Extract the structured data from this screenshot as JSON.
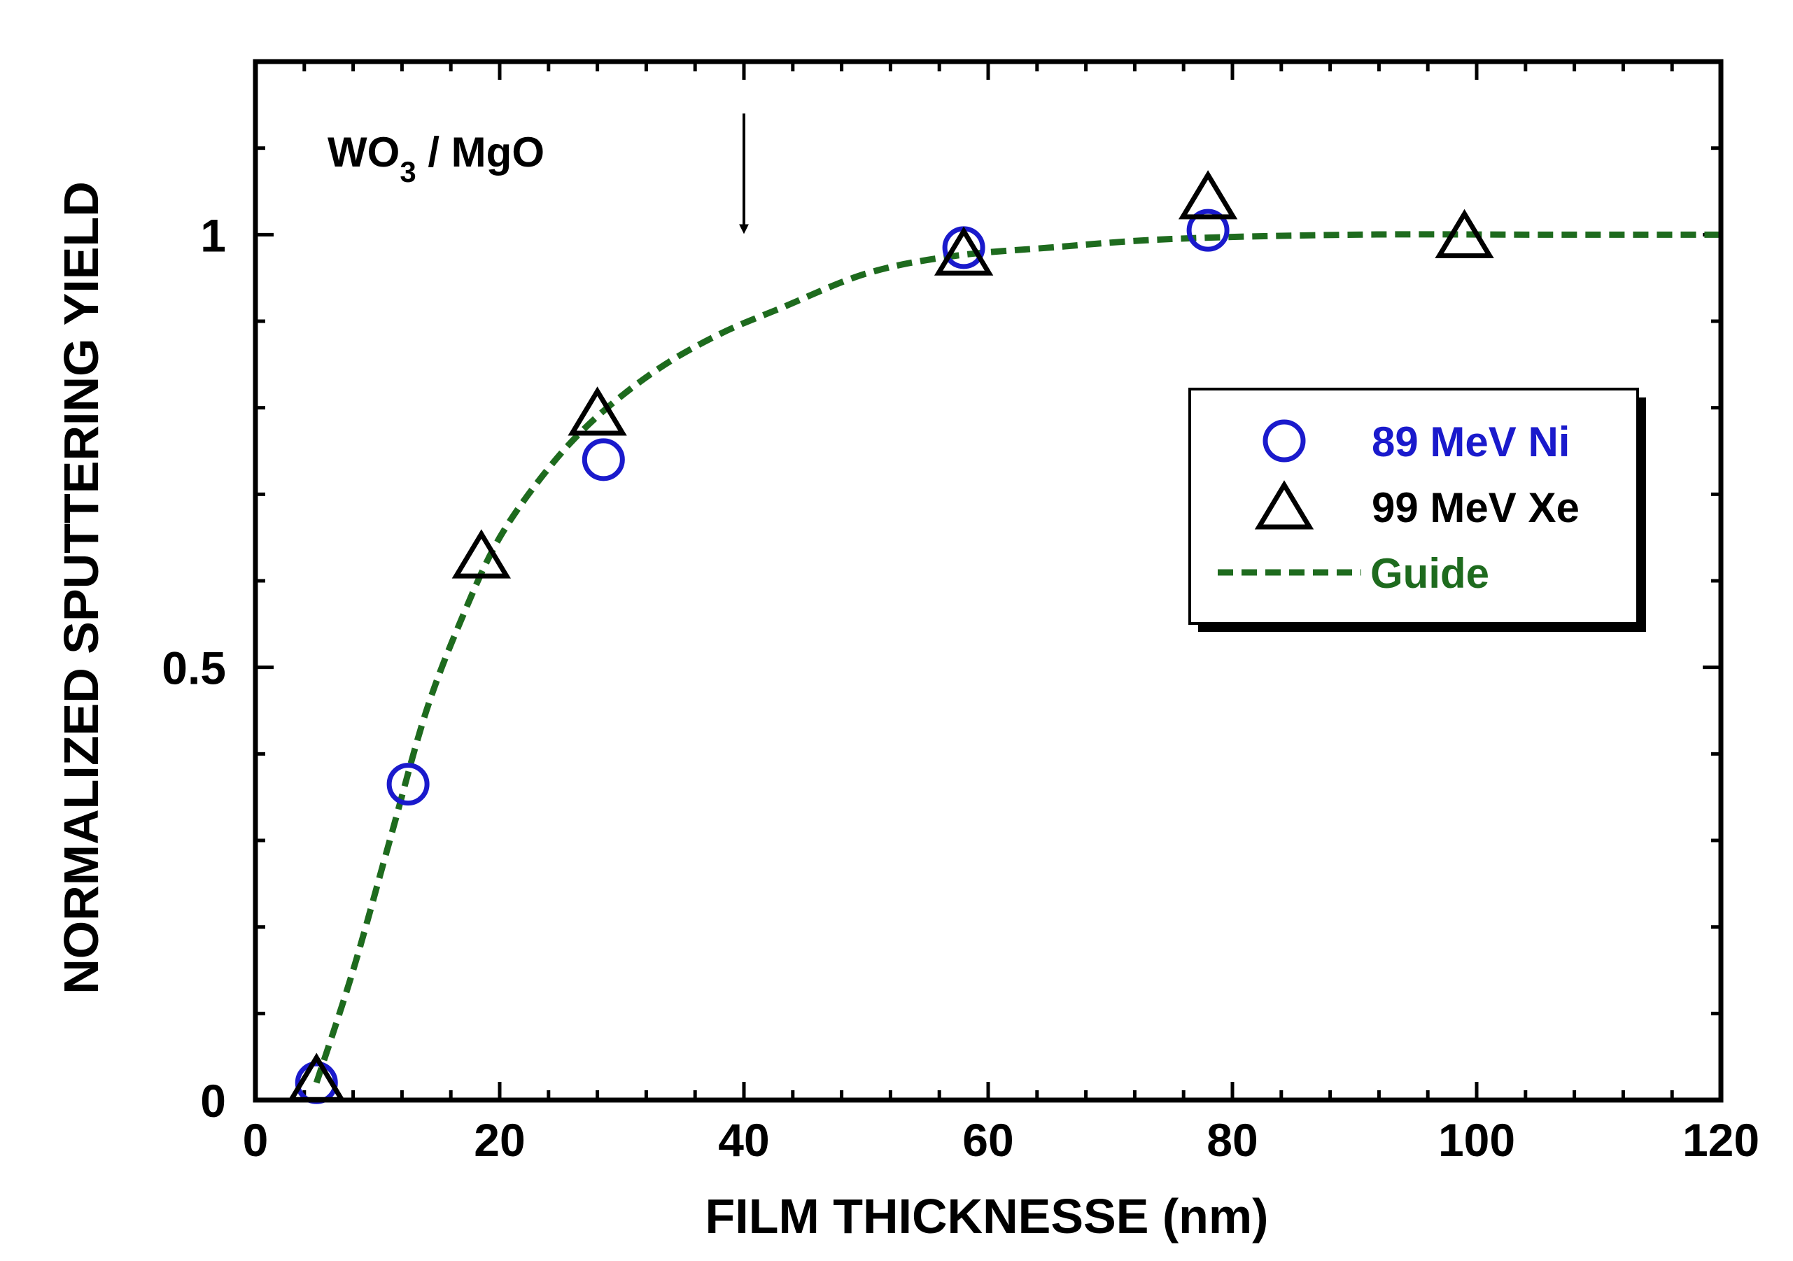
{
  "chart_data": {
    "type": "scatter",
    "title": "",
    "xlabel": "FILM  THICKNESSE  (nm)",
    "ylabel": "NORMALIZED  SPUTTERING  YIELD",
    "xlim": [
      0,
      120
    ],
    "ylim": [
      0,
      1.2
    ],
    "x_ticks": [
      0,
      20,
      40,
      60,
      80,
      100,
      120
    ],
    "x_tick_labels": [
      "0",
      "20",
      "40",
      "60",
      "80",
      "100",
      "120"
    ],
    "y_ticks": [
      0,
      0.5,
      1
    ],
    "y_tick_labels": [
      "0",
      "0.5",
      "1"
    ],
    "grid": false,
    "legend_position": "right",
    "annotation": {
      "text_main": "WO",
      "text_sub": "3",
      "text_rest": " / MgO",
      "arrow_x": 40,
      "arrow_from_y": 1.14,
      "arrow_to_y": 1.0
    },
    "series": [
      {
        "name": "89 MeV Ni",
        "marker": "circle",
        "color": "#1a1acc",
        "x": [
          5,
          12.5,
          28.5,
          58,
          78
        ],
        "y": [
          0.02,
          0.365,
          0.74,
          0.985,
          1.005
        ]
      },
      {
        "name": "99 MeV Xe",
        "marker": "triangle",
        "color": "#000000",
        "x": [
          5,
          18.5,
          28,
          58,
          78,
          99
        ],
        "y": [
          0.02,
          0.625,
          0.79,
          0.975,
          1.04,
          0.995
        ]
      },
      {
        "name": "Guide",
        "marker": "dashed-line",
        "color": "#1e6b1e",
        "x": [
          5,
          8,
          11,
          14,
          17,
          20,
          24,
          28,
          33,
          38,
          43,
          50,
          57,
          65,
          75,
          90,
          105,
          120
        ],
        "y": [
          0.02,
          0.15,
          0.3,
          0.45,
          0.56,
          0.65,
          0.73,
          0.79,
          0.845,
          0.885,
          0.915,
          0.955,
          0.975,
          0.985,
          0.995,
          1.0,
          1.0,
          1.0
        ]
      }
    ]
  }
}
